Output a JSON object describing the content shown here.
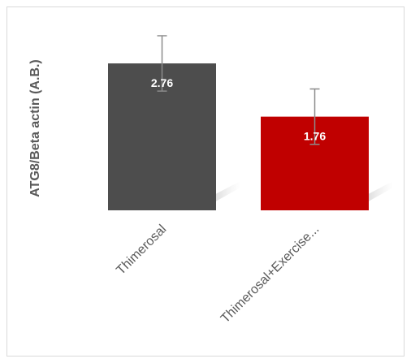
{
  "chart_data": {
    "type": "bar",
    "categories": [
      "Thimerosal",
      "Thimerosal+Exercise..."
    ],
    "values": [
      2.76,
      1.76
    ],
    "error_plus": [
      0.52,
      0.52
    ],
    "error_minus": [
      0.52,
      0.52
    ],
    "data_labels": [
      "2.76",
      "1.76"
    ],
    "ylabel": "ATG8/Beta actin (A.B.)",
    "ylim": [
      0,
      3.28
    ],
    "grid": false,
    "legend": "none",
    "colors": [
      "#4d4d4d",
      "#c00000"
    ]
  }
}
